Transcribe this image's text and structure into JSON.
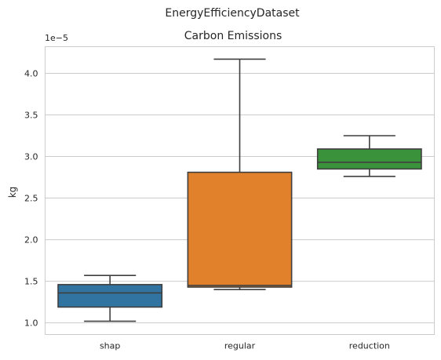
{
  "chart_data": {
    "type": "box",
    "suptitle": "EnergyEfficiencyDataset",
    "title": "Carbon Emissions",
    "xlabel": "",
    "ylabel": "kg",
    "y_multiplier_label": "1e−5",
    "ylim": [
      0.86,
      4.32
    ],
    "yticks": [
      1.0,
      1.5,
      2.0,
      2.5,
      3.0,
      3.5,
      4.0
    ],
    "ytick_labels": [
      "1.0",
      "1.5",
      "2.0",
      "2.5",
      "3.0",
      "3.5",
      "4.0"
    ],
    "grid": true,
    "categories": [
      "shap",
      "regular",
      "reduction"
    ],
    "colors": [
      "#3274a1",
      "#e1812c",
      "#3a923a"
    ],
    "boxes": [
      {
        "category": "shap",
        "whislo": 1.02,
        "q1": 1.19,
        "med": 1.36,
        "q3": 1.46,
        "whishi": 1.57
      },
      {
        "category": "regular",
        "whislo": 1.4,
        "q1": 1.43,
        "med": 1.45,
        "q3": 2.81,
        "whishi": 4.17
      },
      {
        "category": "reduction",
        "whislo": 2.76,
        "q1": 2.85,
        "med": 2.93,
        "q3": 3.09,
        "whishi": 3.25
      }
    ]
  }
}
